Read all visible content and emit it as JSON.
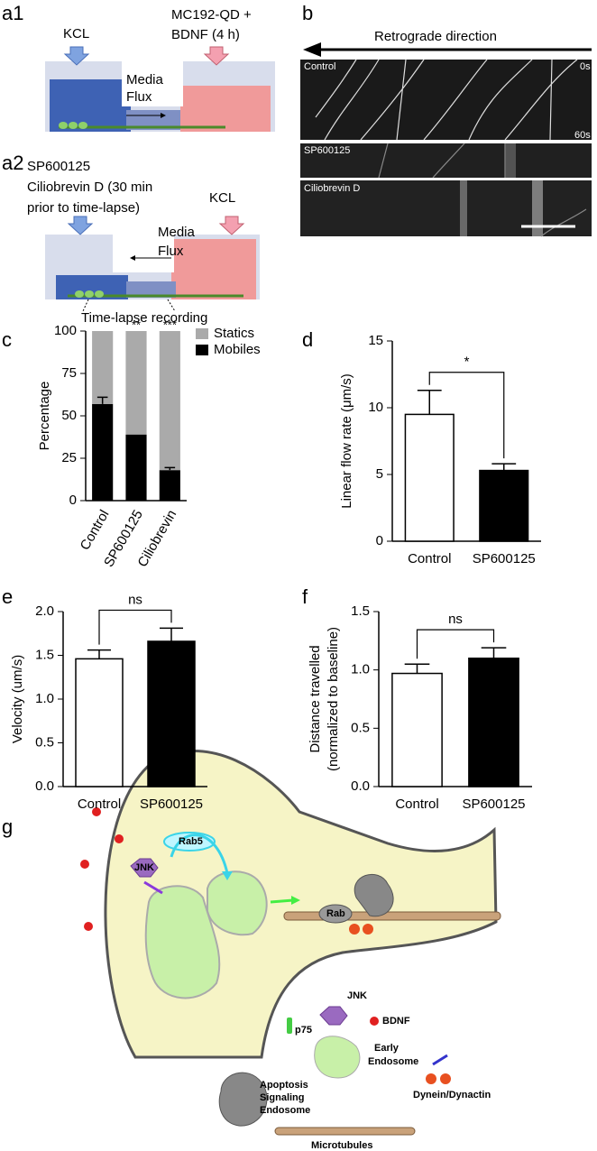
{
  "panel_labels": [
    "a1",
    "b",
    "a2",
    "c",
    "d",
    "e",
    "f",
    "g"
  ],
  "panel_a1": {
    "left_label": "KCL",
    "right_label": [
      "MC192-QD +",
      "BDNF (4 h)"
    ],
    "flux": [
      "Media",
      "Flux"
    ]
  },
  "panel_a2": {
    "left_label": [
      "SP600125",
      "Ciliobrevin D (30 min",
      "prior to time-lapse)"
    ],
    "right_label": "KCL",
    "flux": [
      "Media",
      "Flux"
    ],
    "caption": "Time-lapse recording"
  },
  "panel_b": {
    "direction": "Retrograde direction",
    "kymographs": [
      {
        "label": "Control",
        "start": "0s",
        "end": "60s"
      },
      {
        "label": "SP600125"
      },
      {
        "label": "Ciliobrevin D"
      }
    ]
  },
  "chart_data": [
    {
      "type": "stacked_bar",
      "y_label": "Percentage",
      "categories": [
        "Control",
        "SP600125",
        "Ciliobrevin"
      ],
      "series": [
        {
          "name": "Mobiles",
          "color": "#000000",
          "values": [
            57,
            39,
            18
          ],
          "errors": [
            4,
            null,
            1.5
          ]
        },
        {
          "name": "Statics",
          "color": "#aaaaaa",
          "values": [
            43,
            61,
            82
          ]
        }
      ],
      "significance": [
        null,
        "**",
        "***"
      ],
      "ylim": [
        0,
        100
      ],
      "yticks": [
        0,
        25,
        50,
        75,
        100
      ],
      "grid": false,
      "legend": "right"
    },
    {
      "type": "bar",
      "y_label": "Linear flow rate (μm/s)",
      "categories": [
        "Control",
        "SP600125"
      ],
      "values": [
        9.5,
        5.3
      ],
      "errors": [
        1.8,
        0.5
      ],
      "colors": [
        "#ffffff",
        "#000000"
      ],
      "significance": "*",
      "ylim": [
        0,
        15
      ],
      "yticks": [
        0,
        5,
        10,
        15
      ],
      "grid": false
    },
    {
      "type": "bar",
      "y_label": "Velocity (um/s)",
      "categories": [
        "Control",
        "SP600125"
      ],
      "values": [
        1.46,
        1.66
      ],
      "errors": [
        0.1,
        0.15
      ],
      "colors": [
        "#ffffff",
        "#000000"
      ],
      "significance": "ns",
      "ylim": [
        0,
        2
      ],
      "yticks": [
        {
          "value": 0,
          "label": "0.0"
        },
        0.5,
        {
          "value": 1,
          "label": "1.0"
        },
        1.5,
        {
          "value": 2,
          "label": "2.0"
        }
      ],
      "grid": false
    },
    {
      "type": "bar",
      "y_label": [
        "Distance travelled",
        "(normalized to baseline)"
      ],
      "categories": [
        "Control",
        "SP600125"
      ],
      "values": [
        0.97,
        1.1
      ],
      "errors": [
        0.08,
        0.09
      ],
      "colors": [
        "#ffffff",
        "#000000"
      ],
      "significance": "ns",
      "ylim": [
        0,
        1.5
      ],
      "yticks": [
        {
          "value": 0,
          "label": "0.0"
        },
        0.5,
        {
          "value": 1,
          "label": "1.0"
        },
        1.5
      ],
      "grid": false
    }
  ],
  "panel_g": {
    "rab5": "Rab5",
    "jnk_cell": "JNK",
    "rab": "Rab",
    "p75": "p75",
    "jnk": "JNK",
    "bdnf": "BDNF",
    "early_endosome": [
      "Early",
      "Endosome"
    ],
    "dynein": "Dynein/Dynactin",
    "apoptosis": [
      "Apoptosis",
      "Signaling",
      "Endosome"
    ],
    "microtubules": "Microtubules"
  }
}
